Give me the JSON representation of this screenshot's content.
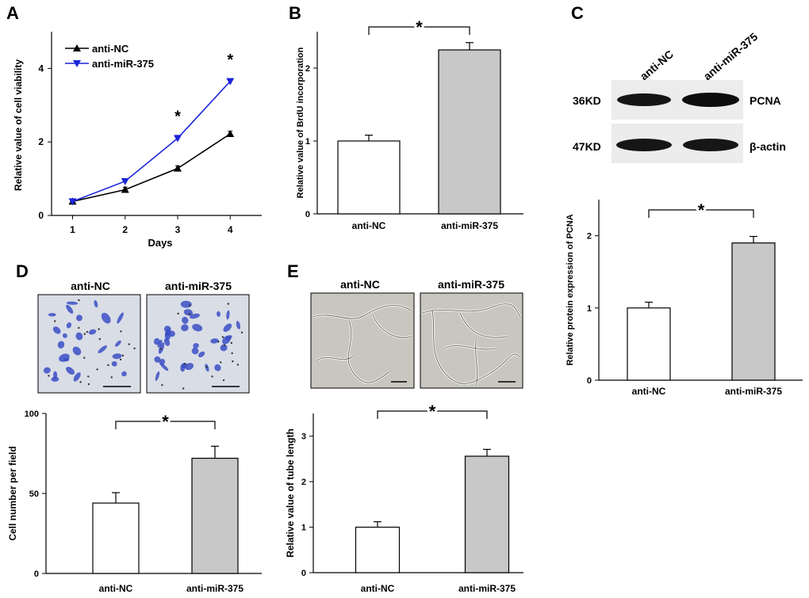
{
  "colors": {
    "blue": "#1a24d8",
    "black": "#000000",
    "grey_bar": "#c8c8c8",
    "white_bar": "#ffffff",
    "blot_bg": "#ececec",
    "cell_stain": "#3b4fc4",
    "tube_bg": "#c9c6c0"
  },
  "chart_data": [
    {
      "panel": "A",
      "type": "line",
      "x": [
        1,
        2,
        3,
        4
      ],
      "series": [
        {
          "name": "anti-NC",
          "values": [
            0.38,
            0.7,
            1.28,
            2.22
          ],
          "errors": [
            0.07,
            0.07,
            0.07,
            0.07
          ],
          "color": "black",
          "marker": "triangle-up"
        },
        {
          "name": "anti-miR-375",
          "values": [
            0.38,
            0.93,
            2.1,
            3.65
          ],
          "errors": [
            0.07,
            0.07,
            0.08,
            0.07
          ],
          "color": "blue",
          "marker": "triangle-down"
        }
      ],
      "xlabel": "Days",
      "ylabel": "Relative value of cell viability",
      "xlim": [
        0.6,
        4.6
      ],
      "ylim": [
        0,
        5
      ],
      "yticks": [
        0,
        2,
        4
      ],
      "xticks": [
        1,
        2,
        3,
        4
      ],
      "significance": [
        {
          "x": 3,
          "label": "*"
        },
        {
          "x": 4,
          "label": "*"
        }
      ],
      "legend_position": "top-left"
    },
    {
      "panel": "B",
      "type": "bar",
      "categories": [
        "anti-NC",
        "anti-miR-375"
      ],
      "values": [
        1.0,
        2.25
      ],
      "errors": [
        0.08,
        0.1
      ],
      "fills": [
        "white_bar",
        "grey_bar"
      ],
      "ylabel": "Relative value of BrdU incorporation",
      "ylim": [
        0,
        2.5
      ],
      "yticks": [
        0,
        1,
        2
      ],
      "significance": "*"
    },
    {
      "panel": "C",
      "type": "bar",
      "categories": [
        "anti-NC",
        "anti-miR-375"
      ],
      "values": [
        1.0,
        1.9
      ],
      "errors": [
        0.08,
        0.09
      ],
      "fills": [
        "white_bar",
        "grey_bar"
      ],
      "ylabel": "Relative  protein expression of PCNA",
      "ylim": [
        0,
        2.5
      ],
      "yticks": [
        0,
        1,
        2
      ],
      "significance": "*"
    },
    {
      "panel": "D",
      "type": "bar",
      "categories": [
        "anti-NC",
        "anti-miR-375"
      ],
      "values": [
        44,
        72
      ],
      "errors": [
        6.5,
        7.5
      ],
      "fills": [
        "white_bar",
        "grey_bar"
      ],
      "ylabel": "Cell number per field",
      "ylim": [
        0,
        100
      ],
      "yticks": [
        0,
        50,
        100
      ],
      "significance": "*"
    },
    {
      "panel": "E",
      "type": "bar",
      "categories": [
        "anti-NC",
        "anti-miR-375"
      ],
      "values": [
        1.0,
        2.56
      ],
      "errors": [
        0.12,
        0.15
      ],
      "fills": [
        "white_bar",
        "grey_bar"
      ],
      "ylabel": "Relative value of tube length",
      "ylim": [
        0,
        3.5
      ],
      "yticks": [
        0,
        1,
        2,
        3
      ],
      "significance": "*"
    }
  ],
  "panel_labels": [
    "A",
    "B",
    "C",
    "D",
    "E"
  ],
  "blot": {
    "lanes": [
      "anti-NC",
      "anti-miR-375"
    ],
    "rows": [
      {
        "weight": "36KD",
        "protein": "PCNA"
      },
      {
        "weight": "47KD",
        "protein": "β-actin"
      }
    ]
  },
  "micrographs": {
    "D": {
      "labels": [
        "anti-NC",
        "anti-miR-375"
      ]
    },
    "E": {
      "labels": [
        "anti-NC",
        "anti-miR-375"
      ]
    }
  }
}
